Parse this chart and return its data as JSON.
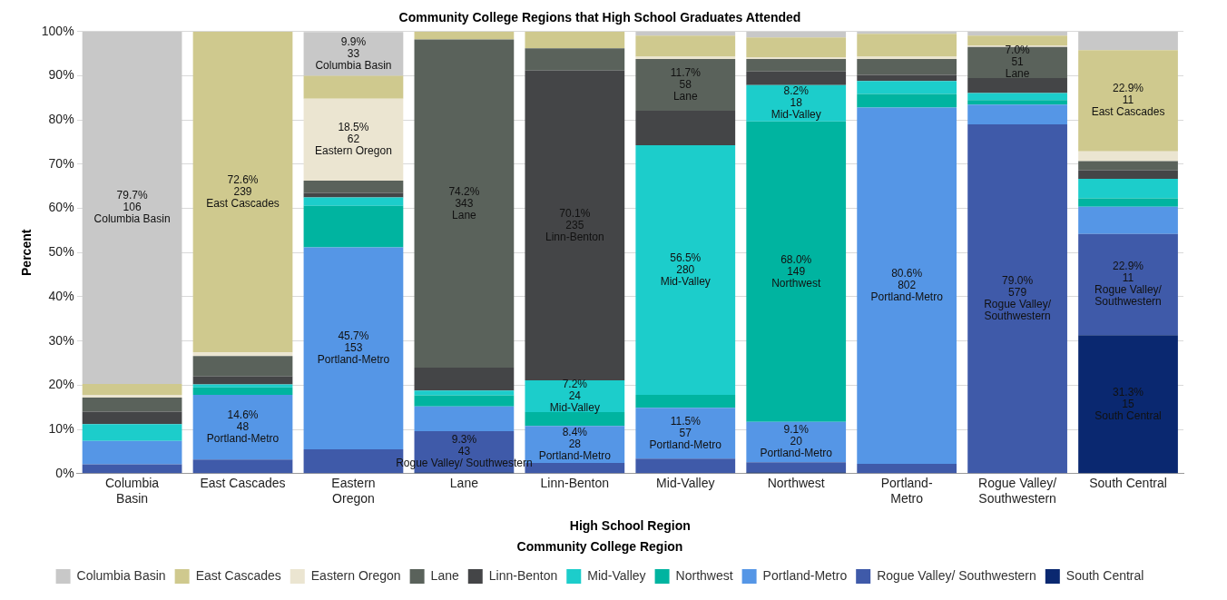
{
  "chart_data": {
    "type": "bar",
    "title": "Community College Regions that High School Graduates Attended",
    "xlabel": "High School Region",
    "ylabel": "Percent",
    "legend_title": "Community College Region",
    "categories": [
      "Columbia Basin",
      "East Cascades",
      "Eastern Oregon",
      "Lane",
      "Linn-Benton",
      "Mid-Valley",
      "Northwest",
      "Portland-Metro",
      "Rogue Valley/ Southwestern",
      "South Central"
    ],
    "stacked": true,
    "ylim": [
      0,
      100
    ],
    "yticks": [
      {
        "value": 0,
        "label": "0%"
      },
      {
        "value": 10,
        "label": "10%"
      },
      {
        "value": 20,
        "label": "20%"
      },
      {
        "value": 30,
        "label": "30%"
      },
      {
        "value": 40,
        "label": "40%"
      },
      {
        "value": 50,
        "label": "50%"
      },
      {
        "value": 60,
        "label": "60%"
      },
      {
        "value": 70,
        "label": "70%"
      },
      {
        "value": 80,
        "label": "80%"
      },
      {
        "value": 90,
        "label": "90%"
      },
      {
        "value": 100,
        "label": "100%"
      }
    ],
    "grid": "y",
    "legend": "bottom",
    "series": [
      {
        "name": "South Central",
        "color": "#0a2870",
        "values": [
          0,
          0,
          0,
          0.3,
          0,
          0,
          0.3,
          0,
          0,
          31.3
        ],
        "value_labels": [
          null,
          null,
          null,
          null,
          null,
          null,
          null,
          null,
          null,
          "31.3%\n15\nSouth Central"
        ]
      },
      {
        "name": "Rogue Valley/ Southwestern",
        "color": "#3f5aa9",
        "values": [
          2.1,
          3.2,
          5.5,
          9.3,
          2.4,
          3.4,
          2.3,
          2.2,
          79.0,
          22.9
        ],
        "value_labels": [
          null,
          null,
          null,
          "9.3%\n43\nRogue Valley/ Southwestern",
          null,
          null,
          null,
          null,
          "79.0%\n579\nRogue Valley/\nSouthwestern",
          "22.9%\n11\nRogue Valley/\nSouthwestern"
        ]
      },
      {
        "name": "Portland-Metro",
        "color": "#5596e6",
        "values": [
          5.3,
          14.6,
          45.7,
          5.6,
          8.4,
          11.5,
          9.1,
          80.6,
          4.5,
          6.2
        ],
        "value_labels": [
          null,
          "14.6%\n48\nPortland-Metro",
          "45.7%\n153\nPortland-Metro",
          null,
          "8.4%\n28\nPortland-Metro",
          "11.5%\n57\nPortland-Metro",
          "9.1%\n20\nPortland-Metro",
          "80.6%\n802\nPortland-Metro",
          null,
          null
        ]
      },
      {
        "name": "Northwest",
        "color": "#00b4a0",
        "values": [
          0,
          1.7,
          9.4,
          2.5,
          3.1,
          2.9,
          68.0,
          3.1,
          1.0,
          1.9
        ],
        "value_labels": [
          null,
          null,
          null,
          null,
          null,
          null,
          "68.0%\n149\nNorthwest",
          null,
          null,
          null
        ]
      },
      {
        "name": "Mid-Valley",
        "color": "#1ccdcb",
        "values": [
          3.8,
          0.7,
          1.9,
          1.1,
          7.2,
          56.5,
          8.2,
          2.9,
          1.6,
          4.4
        ],
        "value_labels": [
          null,
          null,
          null,
          null,
          "7.2%\n24\nMid-Valley",
          "56.5%\n280\nMid-Valley",
          "8.2%\n18\nMid-Valley",
          null,
          null,
          null
        ]
      },
      {
        "name": "Linn-Benton",
        "color": "#444547",
        "values": [
          2.8,
          1.8,
          1.0,
          5.2,
          70.1,
          7.8,
          3.1,
          1.4,
          3.4,
          1.9
        ],
        "value_labels": [
          null,
          null,
          null,
          null,
          "70.1%\n235\nLinn-Benton",
          null,
          null,
          null,
          null,
          null
        ]
      },
      {
        "name": "Lane",
        "color": "#5a625b",
        "values": [
          3.2,
          4.6,
          2.8,
          74.2,
          5.0,
          11.7,
          2.8,
          3.6,
          7.0,
          2.1
        ],
        "value_labels": [
          null,
          null,
          null,
          "74.2%\n343\nLane",
          null,
          "11.7%\n58\nLane",
          null,
          null,
          "7.0%\n51\nLane",
          null
        ]
      },
      {
        "name": "Eastern Oregon",
        "color": "#ebe5d1",
        "values": [
          0.6,
          0.8,
          18.5,
          0,
          0,
          0.5,
          0.4,
          0.5,
          0.4,
          2.2
        ],
        "value_labels": [
          null,
          null,
          "18.5%\n62\nEastern Oregon",
          null,
          null,
          null,
          null,
          null,
          null,
          null
        ]
      },
      {
        "name": "East Cascades",
        "color": "#cfc98e",
        "values": [
          2.5,
          72.6,
          5.2,
          1.8,
          3.8,
          4.8,
          4.5,
          5.2,
          2.2,
          22.9
        ],
        "value_labels": [
          null,
          "72.6%\n239\nEast Cascades",
          null,
          null,
          null,
          null,
          null,
          null,
          null,
          "22.9%\n11\nEast Cascades"
        ]
      },
      {
        "name": "Columbia Basin",
        "color": "#c8c8c8",
        "values": [
          79.7,
          0,
          9.9,
          0,
          0,
          0.9,
          1.3,
          0.5,
          0.9,
          4.2
        ],
        "value_labels": [
          "79.7%\n106\nColumbia Basin",
          null,
          "9.9%\n33\nColumbia Basin",
          null,
          null,
          null,
          null,
          null,
          null,
          null
        ]
      }
    ]
  }
}
